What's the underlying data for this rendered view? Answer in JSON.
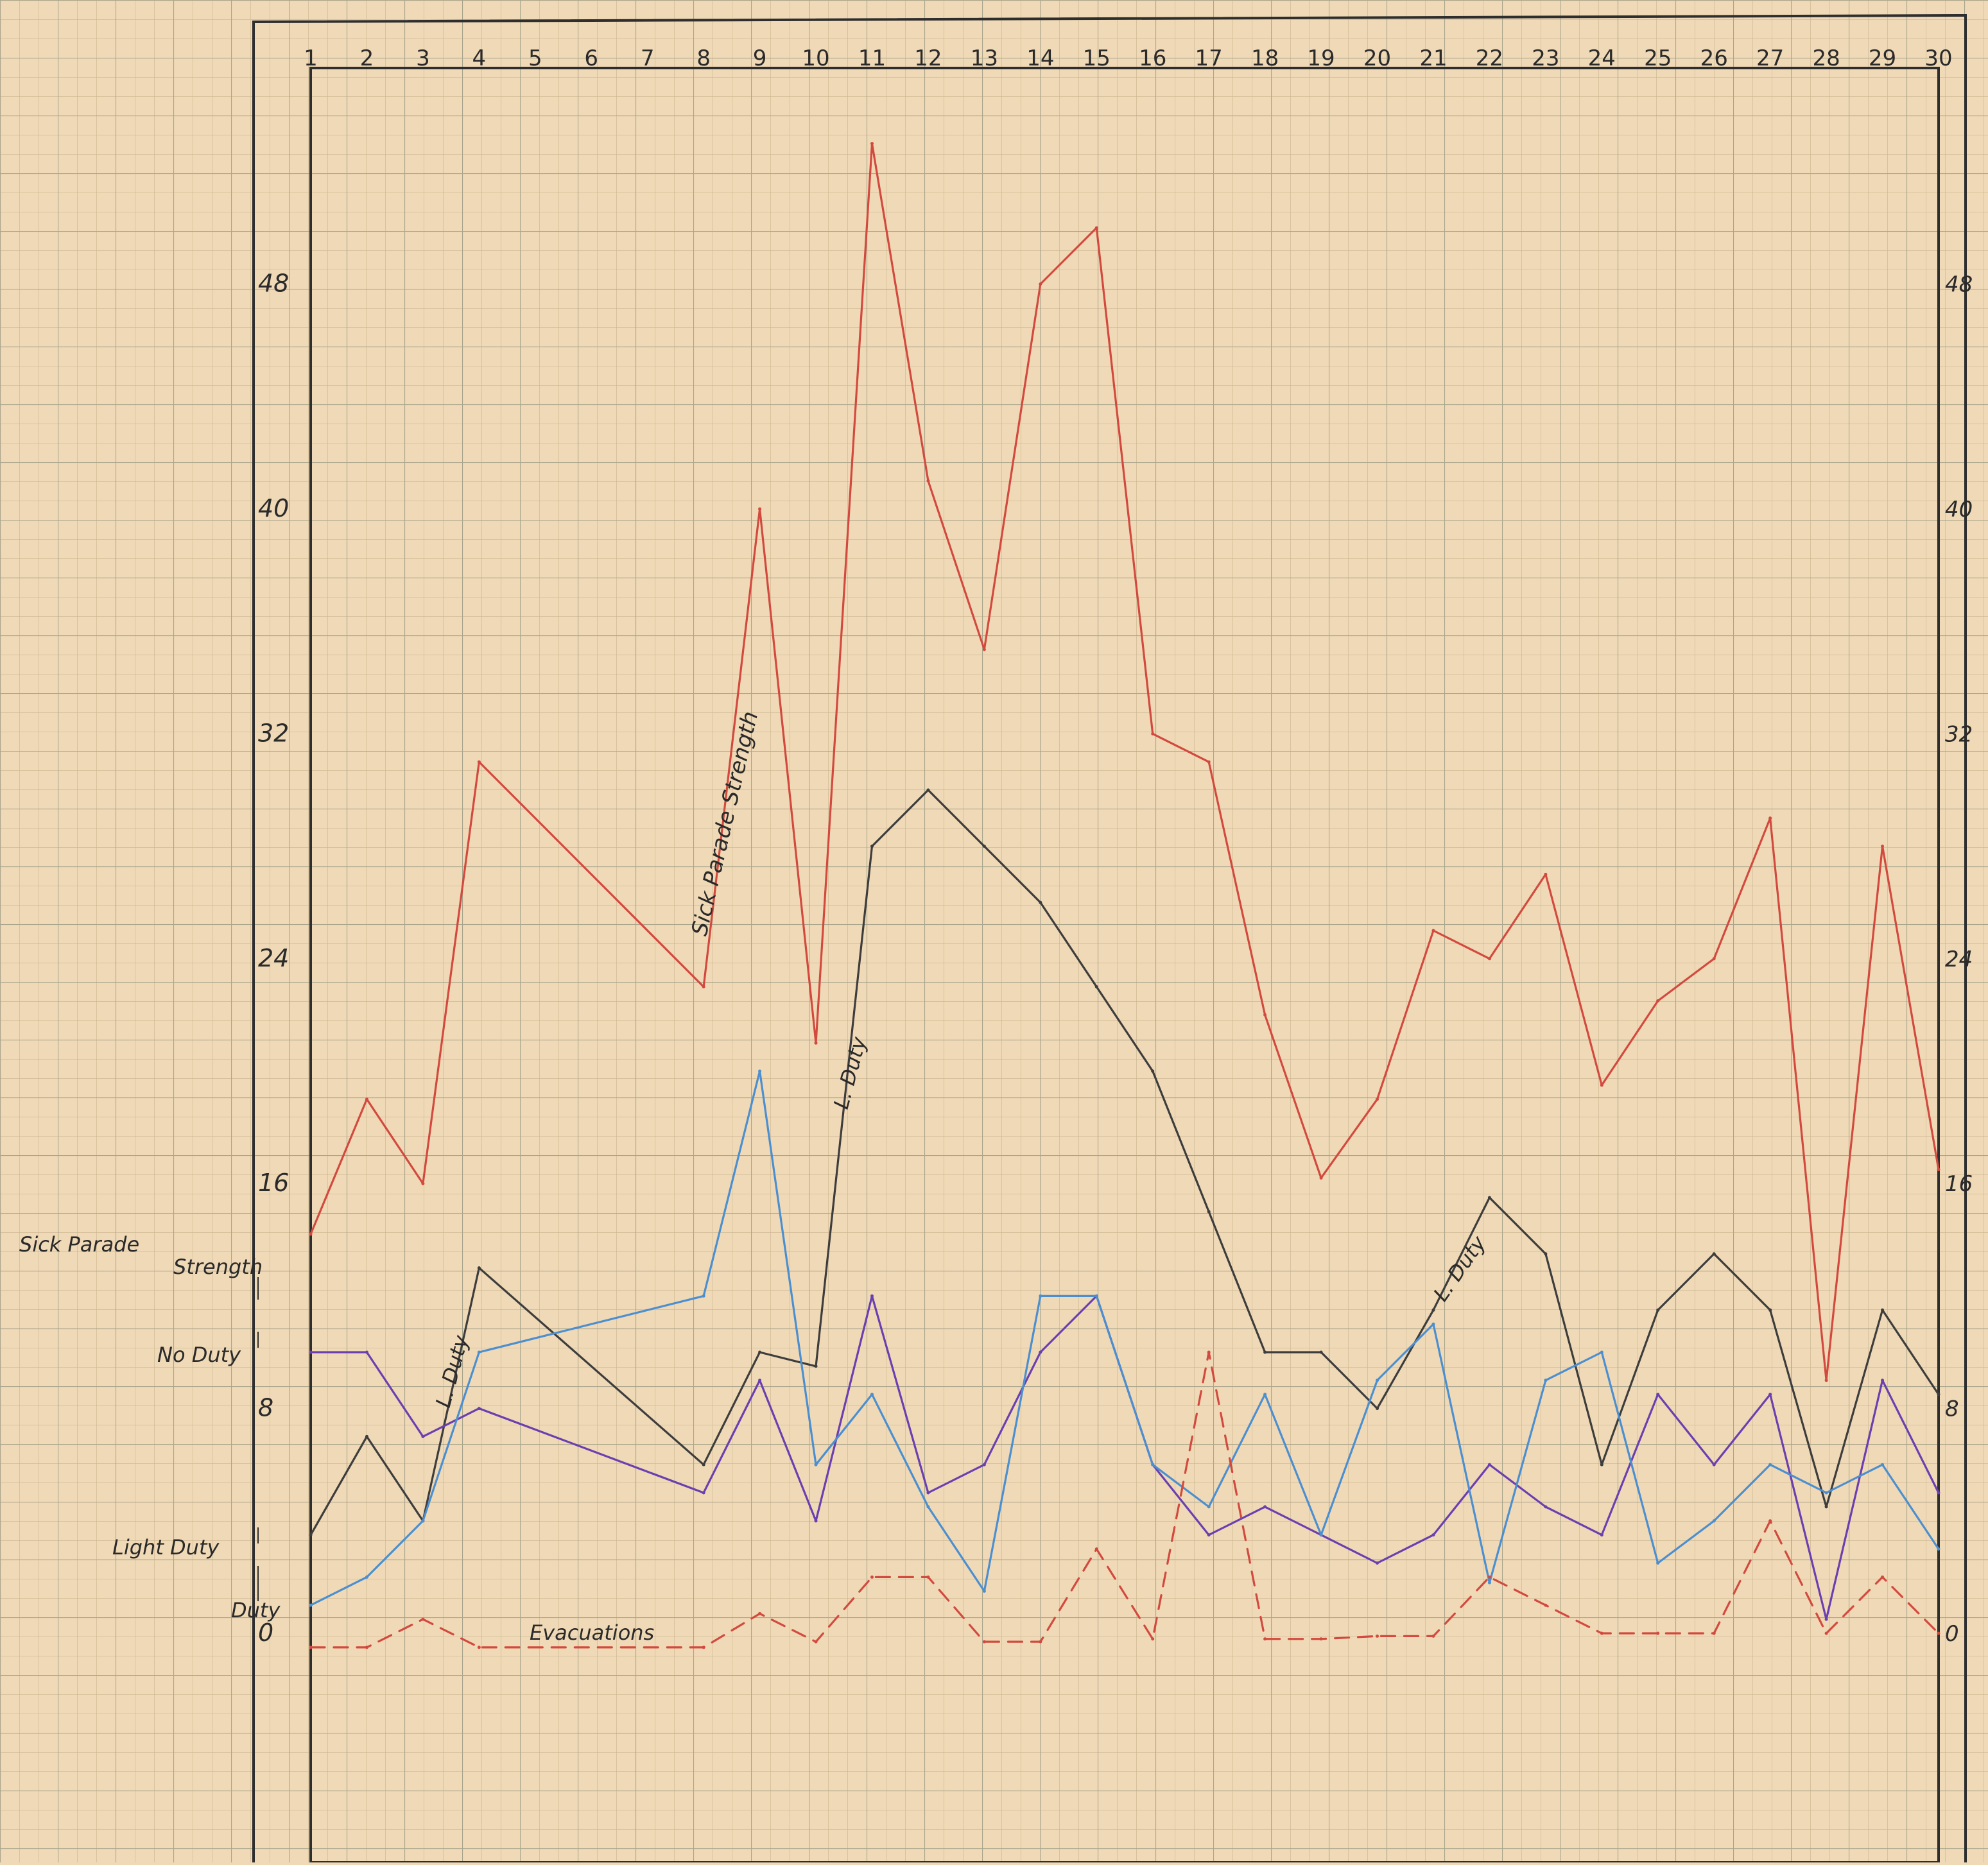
{
  "chart_data": {
    "type": "line",
    "title": "",
    "xlabel": "",
    "ylabel": "",
    "categories": [
      "1",
      "2",
      "3",
      "4",
      "5",
      "6",
      "7",
      "8",
      "9",
      "10",
      "11",
      "12",
      "13",
      "14",
      "15",
      "16",
      "17",
      "18",
      "19",
      "20",
      "21",
      "22",
      "23",
      "24",
      "25",
      "26",
      "27",
      "28",
      "29",
      "30"
    ],
    "x": [
      1,
      2,
      3,
      4,
      5,
      6,
      7,
      8,
      9,
      10,
      11,
      12,
      13,
      14,
      15,
      16,
      17,
      18,
      19,
      20,
      21,
      22,
      23,
      24,
      25,
      26,
      27,
      28,
      29,
      30
    ],
    "ylim": [
      -8,
      56
    ],
    "ytick_labels": [
      "48",
      "40",
      "32",
      "24",
      "16",
      "8",
      "0"
    ],
    "ytick_values": [
      48,
      40,
      32,
      24,
      16,
      8,
      0
    ],
    "grid": true,
    "legend": "none",
    "series": [
      {
        "name": "Sick Parade Strength",
        "color": "#d24a3f",
        "dashed": false,
        "x": [
          1,
          2,
          3,
          4,
          8,
          9,
          10,
          11,
          12,
          13,
          14,
          15,
          16,
          17,
          18,
          19,
          20,
          21,
          22,
          23,
          24,
          25,
          26,
          27,
          28,
          29,
          30
        ],
        "values": [
          14.2,
          19,
          16,
          31,
          23,
          40,
          21,
          53,
          41,
          35,
          48,
          50,
          32,
          31,
          22,
          16.2,
          19,
          25,
          24,
          27,
          19.5,
          22.5,
          24,
          29,
          9,
          28,
          16.5
        ]
      },
      {
        "name": "L. Duty",
        "color": "#3d3d3d",
        "dashed": false,
        "x": [
          1,
          2,
          3,
          4,
          8,
          9,
          10,
          11,
          12,
          13,
          14,
          15,
          16,
          17,
          18,
          19,
          20,
          21,
          22,
          23,
          24,
          25,
          26,
          27,
          28,
          29,
          30
        ],
        "values": [
          3.5,
          7,
          4,
          13,
          6,
          10,
          9.5,
          28,
          30,
          28,
          26,
          23,
          20,
          15,
          10,
          10,
          8,
          11.5,
          15.5,
          13.5,
          6,
          11.5,
          13.5,
          11.5,
          4.5,
          11.5,
          8.5
        ]
      },
      {
        "name": "No Duty",
        "color": "#6a3fb0",
        "dashed": false,
        "x": [
          1,
          2,
          3,
          4,
          8,
          9,
          10,
          11,
          12,
          13,
          14,
          15,
          16,
          17,
          18,
          19,
          20,
          21,
          22,
          23,
          24,
          25,
          26,
          27,
          28,
          29,
          30
        ],
        "values": [
          10,
          10,
          7,
          8,
          5,
          9,
          4,
          12,
          5,
          6,
          10,
          12,
          6,
          3.5,
          4.5,
          3.5,
          2.5,
          3.5,
          6,
          4.5,
          3.5,
          8.5,
          6,
          8.5,
          0.5,
          9,
          5
        ]
      },
      {
        "name": "Light Duty",
        "color": "#4b8fd0",
        "dashed": false,
        "x": [
          1,
          2,
          3,
          4,
          8,
          9,
          10,
          11,
          12,
          13,
          14,
          15,
          16,
          17,
          18,
          19,
          20,
          21,
          22,
          23,
          24,
          25,
          26,
          27,
          28,
          29,
          30
        ],
        "values": [
          1,
          2,
          4,
          10,
          12,
          20,
          6,
          8.5,
          4.5,
          1.5,
          12,
          12,
          6,
          4.5,
          8.5,
          3.5,
          9,
          11,
          1.8,
          9,
          10,
          2.5,
          4,
          6,
          5,
          6,
          3
        ]
      },
      {
        "name": "Evacuations",
        "color": "#d24a3f",
        "dashed": true,
        "x": [
          1,
          2,
          3,
          4,
          8,
          9,
          10,
          11,
          12,
          13,
          14,
          15,
          16,
          17,
          18,
          19,
          20,
          21,
          22,
          23,
          24,
          25,
          26,
          27,
          28,
          29,
          30
        ],
        "values": [
          -0.5,
          -0.5,
          0.5,
          -0.5,
          -0.5,
          0.7,
          -0.3,
          2,
          2,
          -0.3,
          -0.3,
          3,
          -0.2,
          10,
          -0.2,
          -0.2,
          -0.1,
          -0.1,
          2,
          1,
          0,
          0,
          0,
          4,
          0,
          2,
          0
        ]
      }
    ],
    "annotations": {
      "sick_parade_strength": "Sick Parade Strength",
      "l_duty_1": "L. Duty",
      "l_duty_2": "L. Duty",
      "l_duty_3": "L. Duty",
      "evacuations": "Evacuations"
    },
    "left_labels": {
      "sick_parade": "Sick Parade",
      "strength": "Strength",
      "no_duty": "No Duty",
      "light_duty": "Light Duty",
      "duty": "Duty"
    }
  }
}
